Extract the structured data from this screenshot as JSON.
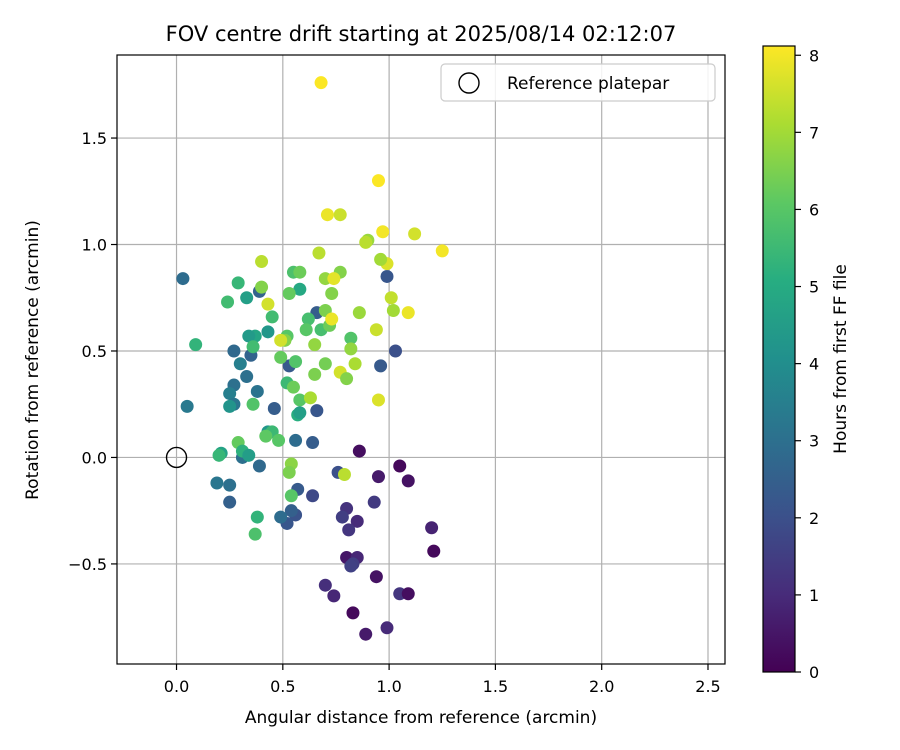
{
  "chart_data": {
    "type": "scatter",
    "title": "FOV centre drift starting at 2025/08/14 02:12:07",
    "xlabel": "Angular distance from reference (arcmin)",
    "ylabel": "Rotation from reference (arcmin)",
    "xlim": [
      -0.28,
      2.58
    ],
    "ylim": [
      -0.97,
      1.89
    ],
    "xticks": [
      0.0,
      0.5,
      1.0,
      1.5,
      2.0,
      2.5
    ],
    "xtick_labels": [
      "0.0",
      "0.5",
      "1.0",
      "1.5",
      "2.0",
      "2.5"
    ],
    "yticks": [
      -0.5,
      0.0,
      0.5,
      1.0,
      1.5
    ],
    "ytick_labels": [
      "−0.5",
      "0.0",
      "0.5",
      "1.0",
      "1.5"
    ],
    "grid": true,
    "legend": {
      "position": "top-right",
      "entries": [
        "Reference platepar"
      ]
    },
    "reference_point": {
      "x": 0.0,
      "y": 0.0,
      "label": "Reference platepar"
    },
    "colorbar": {
      "label": "Hours from first FF file",
      "colormap": "viridis",
      "range": [
        0,
        8.12
      ],
      "ticks": [
        0,
        1,
        2,
        3,
        4,
        5,
        6,
        7,
        8
      ],
      "tick_labels": [
        "0",
        "1",
        "2",
        "3",
        "4",
        "5",
        "6",
        "7",
        "8"
      ]
    },
    "points": [
      {
        "x": 0.86,
        "y": 0.03,
        "h": 0.3
      },
      {
        "x": 1.05,
        "y": -0.04,
        "h": 0.2
      },
      {
        "x": 1.09,
        "y": -0.11,
        "h": 0.4
      },
      {
        "x": 0.95,
        "y": -0.09,
        "h": 0.6
      },
      {
        "x": 1.2,
        "y": -0.33,
        "h": 0.8
      },
      {
        "x": 1.21,
        "y": -0.44,
        "h": 0.2
      },
      {
        "x": 0.94,
        "y": -0.56,
        "h": 0.4
      },
      {
        "x": 0.8,
        "y": -0.47,
        "h": 0.5
      },
      {
        "x": 0.85,
        "y": -0.47,
        "h": 0.9
      },
      {
        "x": 0.83,
        "y": -0.5,
        "h": 1.5
      },
      {
        "x": 0.82,
        "y": -0.51,
        "h": 1.6
      },
      {
        "x": 0.7,
        "y": -0.6,
        "h": 1.1
      },
      {
        "x": 0.74,
        "y": -0.65,
        "h": 0.9
      },
      {
        "x": 0.83,
        "y": -0.73,
        "h": 0.2
      },
      {
        "x": 0.89,
        "y": -0.83,
        "h": 0.6
      },
      {
        "x": 0.99,
        "y": -0.8,
        "h": 1.0
      },
      {
        "x": 1.05,
        "y": -0.64,
        "h": 1.3
      },
      {
        "x": 1.09,
        "y": -0.64,
        "h": 0.3
      },
      {
        "x": 0.8,
        "y": -0.24,
        "h": 1.2
      },
      {
        "x": 0.78,
        "y": -0.28,
        "h": 1.5
      },
      {
        "x": 0.85,
        "y": -0.3,
        "h": 1.0
      },
      {
        "x": 0.81,
        "y": -0.34,
        "h": 1.3
      },
      {
        "x": 0.93,
        "y": -0.21,
        "h": 1.4
      },
      {
        "x": 0.76,
        "y": -0.07,
        "h": 2.0
      },
      {
        "x": 0.64,
        "y": -0.18,
        "h": 1.8
      },
      {
        "x": 0.57,
        "y": -0.15,
        "h": 2.3
      },
      {
        "x": 0.56,
        "y": -0.27,
        "h": 2.1
      },
      {
        "x": 0.54,
        "y": -0.25,
        "h": 2.5
      },
      {
        "x": 0.52,
        "y": -0.31,
        "h": 2.2
      },
      {
        "x": 0.49,
        "y": -0.28,
        "h": 2.9
      },
      {
        "x": 0.99,
        "y": 0.85,
        "h": 2.2
      },
      {
        "x": 1.03,
        "y": 0.5,
        "h": 2.0
      },
      {
        "x": 0.96,
        "y": 0.43,
        "h": 2.3
      },
      {
        "x": 0.66,
        "y": 0.68,
        "h": 2.4
      },
      {
        "x": 0.66,
        "y": 0.22,
        "h": 2.2
      },
      {
        "x": 0.64,
        "y": 0.07,
        "h": 2.4
      },
      {
        "x": 0.56,
        "y": 0.08,
        "h": 2.9
      },
      {
        "x": 0.53,
        "y": 0.43,
        "h": 2.3
      },
      {
        "x": 0.46,
        "y": 0.23,
        "h": 2.4
      },
      {
        "x": 0.39,
        "y": 0.78,
        "h": 2.6
      },
      {
        "x": 0.35,
        "y": 0.48,
        "h": 2.6
      },
      {
        "x": 0.33,
        "y": 0.38,
        "h": 3.0
      },
      {
        "x": 0.27,
        "y": 0.5,
        "h": 2.8
      },
      {
        "x": 0.27,
        "y": 0.34,
        "h": 3.0
      },
      {
        "x": 0.25,
        "y": 0.3,
        "h": 3.5
      },
      {
        "x": 0.27,
        "y": 0.25,
        "h": 3.2
      },
      {
        "x": 0.3,
        "y": 0.44,
        "h": 3.5
      },
      {
        "x": 0.38,
        "y": 0.31,
        "h": 3.1
      },
      {
        "x": 0.03,
        "y": 0.84,
        "h": 2.9
      },
      {
        "x": 0.05,
        "y": 0.24,
        "h": 3.3
      },
      {
        "x": 0.19,
        "y": -0.12,
        "h": 3.2
      },
      {
        "x": 0.25,
        "y": -0.13,
        "h": 3.0
      },
      {
        "x": 0.25,
        "y": -0.21,
        "h": 2.5
      },
      {
        "x": 0.31,
        "y": 0.0,
        "h": 3.0
      },
      {
        "x": 0.39,
        "y": -0.04,
        "h": 2.8
      },
      {
        "x": 0.09,
        "y": 0.53,
        "h": 5.3
      },
      {
        "x": 0.29,
        "y": 0.82,
        "h": 5.4
      },
      {
        "x": 0.33,
        "y": 0.75,
        "h": 4.6
      },
      {
        "x": 0.37,
        "y": 0.57,
        "h": 4.8
      },
      {
        "x": 0.34,
        "y": 0.57,
        "h": 4.4
      },
      {
        "x": 0.43,
        "y": 0.59,
        "h": 4.3
      },
      {
        "x": 0.24,
        "y": 0.73,
        "h": 5.6
      },
      {
        "x": 0.36,
        "y": 0.52,
        "h": 5.6
      },
      {
        "x": 0.25,
        "y": 0.24,
        "h": 4.2
      },
      {
        "x": 0.36,
        "y": 0.25,
        "h": 5.9
      },
      {
        "x": 0.29,
        "y": 0.07,
        "h": 6.2
      },
      {
        "x": 0.31,
        "y": 0.03,
        "h": 5.2
      },
      {
        "x": 0.34,
        "y": 0.01,
        "h": 4.5
      },
      {
        "x": 0.21,
        "y": 0.02,
        "h": 4.7
      },
      {
        "x": 0.2,
        "y": 0.01,
        "h": 5.4
      },
      {
        "x": 0.43,
        "y": 0.12,
        "h": 4.3
      },
      {
        "x": 0.45,
        "y": 0.12,
        "h": 5.5
      },
      {
        "x": 0.42,
        "y": 0.1,
        "h": 6.1
      },
      {
        "x": 0.48,
        "y": 0.08,
        "h": 6.0
      },
      {
        "x": 0.38,
        "y": -0.28,
        "h": 5.3
      },
      {
        "x": 0.37,
        "y": -0.36,
        "h": 5.8
      },
      {
        "x": 0.58,
        "y": 0.79,
        "h": 4.9
      },
      {
        "x": 0.55,
        "y": 0.87,
        "h": 5.8
      },
      {
        "x": 0.58,
        "y": 0.87,
        "h": 6.3
      },
      {
        "x": 0.53,
        "y": 0.77,
        "h": 6.2
      },
      {
        "x": 0.62,
        "y": 0.65,
        "h": 5.7
      },
      {
        "x": 0.61,
        "y": 0.6,
        "h": 6.0
      },
      {
        "x": 0.68,
        "y": 0.6,
        "h": 5.7
      },
      {
        "x": 0.72,
        "y": 0.62,
        "h": 6.3
      },
      {
        "x": 0.7,
        "y": 0.69,
        "h": 6.5
      },
      {
        "x": 0.45,
        "y": 0.66,
        "h": 5.6
      },
      {
        "x": 0.52,
        "y": 0.57,
        "h": 6.0
      },
      {
        "x": 0.51,
        "y": 0.55,
        "h": 6.6
      },
      {
        "x": 0.49,
        "y": 0.47,
        "h": 6.2
      },
      {
        "x": 0.56,
        "y": 0.45,
        "h": 5.9
      },
      {
        "x": 0.52,
        "y": 0.35,
        "h": 5.5
      },
      {
        "x": 0.55,
        "y": 0.33,
        "h": 6.3
      },
      {
        "x": 0.57,
        "y": 0.2,
        "h": 5.1
      },
      {
        "x": 0.58,
        "y": 0.27,
        "h": 6.0
      },
      {
        "x": 0.58,
        "y": 0.21,
        "h": 4.6
      },
      {
        "x": 0.54,
        "y": -0.03,
        "h": 6.7
      },
      {
        "x": 0.53,
        "y": -0.07,
        "h": 6.5
      },
      {
        "x": 0.54,
        "y": -0.18,
        "h": 6.0
      },
      {
        "x": 0.65,
        "y": 0.39,
        "h": 6.5
      },
      {
        "x": 0.7,
        "y": 0.44,
        "h": 6.4
      },
      {
        "x": 0.65,
        "y": 0.53,
        "h": 6.8
      },
      {
        "x": 0.73,
        "y": 0.77,
        "h": 6.6
      },
      {
        "x": 0.7,
        "y": 0.84,
        "h": 6.8
      },
      {
        "x": 0.67,
        "y": 0.96,
        "h": 7.3
      },
      {
        "x": 0.77,
        "y": 0.87,
        "h": 6.6
      },
      {
        "x": 0.74,
        "y": 0.84,
        "h": 7.8
      },
      {
        "x": 0.82,
        "y": 0.56,
        "h": 5.9
      },
      {
        "x": 0.82,
        "y": 0.51,
        "h": 6.8
      },
      {
        "x": 0.77,
        "y": 0.4,
        "h": 7.6
      },
      {
        "x": 0.8,
        "y": 0.37,
        "h": 6.6
      },
      {
        "x": 0.84,
        "y": 0.44,
        "h": 7.1
      },
      {
        "x": 0.86,
        "y": 0.68,
        "h": 6.9
      },
      {
        "x": 0.9,
        "y": 1.02,
        "h": 6.9
      },
      {
        "x": 0.89,
        "y": 1.01,
        "h": 7.3
      },
      {
        "x": 0.71,
        "y": 1.14,
        "h": 7.9
      },
      {
        "x": 0.77,
        "y": 1.14,
        "h": 7.5
      },
      {
        "x": 0.95,
        "y": 1.3,
        "h": 8.1
      },
      {
        "x": 0.97,
        "y": 1.06,
        "h": 8.0
      },
      {
        "x": 0.99,
        "y": 0.91,
        "h": 7.7
      },
      {
        "x": 0.96,
        "y": 0.93,
        "h": 7.0
      },
      {
        "x": 1.01,
        "y": 0.75,
        "h": 7.4
      },
      {
        "x": 1.02,
        "y": 0.69,
        "h": 7.0
      },
      {
        "x": 1.09,
        "y": 0.68,
        "h": 7.9
      },
      {
        "x": 1.12,
        "y": 1.05,
        "h": 7.6
      },
      {
        "x": 1.25,
        "y": 0.97,
        "h": 8.0
      },
      {
        "x": 0.94,
        "y": 0.6,
        "h": 7.5
      },
      {
        "x": 0.95,
        "y": 0.27,
        "h": 7.7
      },
      {
        "x": 0.73,
        "y": 0.65,
        "h": 7.9
      },
      {
        "x": 0.68,
        "y": 1.76,
        "h": 8.1
      },
      {
        "x": 0.4,
        "y": 0.92,
        "h": 7.3
      },
      {
        "x": 0.4,
        "y": 0.8,
        "h": 6.6
      },
      {
        "x": 0.43,
        "y": 0.72,
        "h": 7.6
      },
      {
        "x": 0.49,
        "y": 0.55,
        "h": 7.6
      },
      {
        "x": 0.63,
        "y": 0.28,
        "h": 7.1
      },
      {
        "x": 0.79,
        "y": -0.08,
        "h": 7.3
      }
    ]
  }
}
